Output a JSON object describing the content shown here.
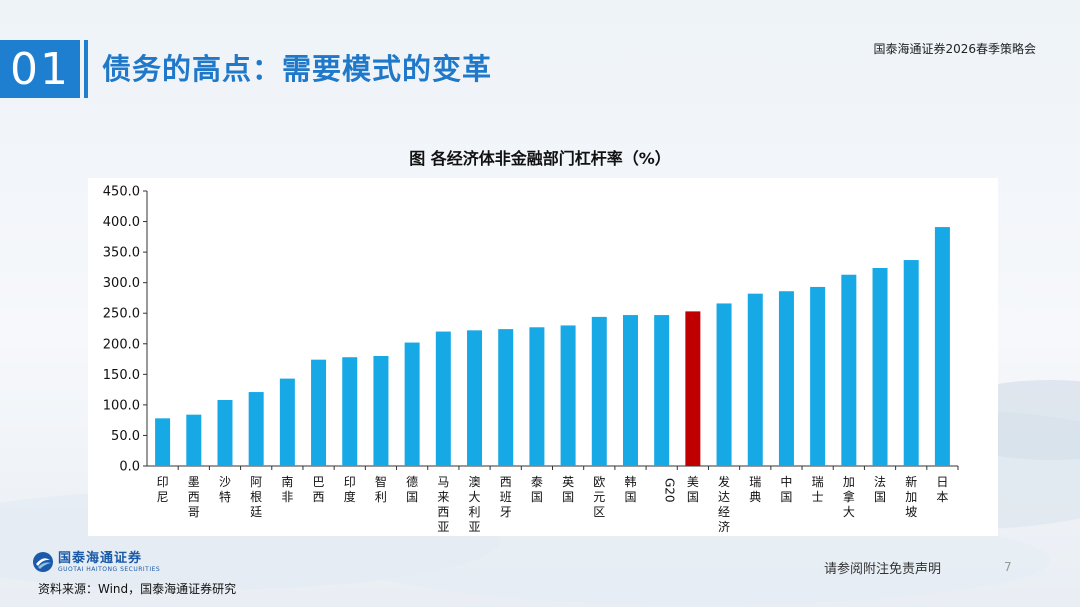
{
  "section": {
    "number": "01"
  },
  "slide": {
    "title": "债务的高点：需要模式的变革"
  },
  "event_name": "国泰海通证券2026春季策略会",
  "chart_data": {
    "type": "bar",
    "title": "图 各经济体非金融部门杠杆率（%）",
    "categories": [
      "印尼",
      "墨西哥",
      "沙特",
      "阿根廷",
      "南非",
      "巴西",
      "印度",
      "智利",
      "德国",
      "马来西亚",
      "澳大利亚",
      "西班牙",
      "泰国",
      "英国",
      "欧元区",
      "韩国",
      "G20",
      "美国",
      "发达经济",
      "瑞典",
      "中国",
      "瑞士",
      "加拿大",
      "法国",
      "新加坡",
      "日本"
    ],
    "values": [
      78,
      84,
      108,
      121,
      143,
      174,
      178,
      180,
      202,
      220,
      222,
      224,
      227,
      230,
      244,
      247,
      247,
      253,
      266,
      282,
      286,
      293,
      313,
      324,
      337,
      391
    ],
    "highlight_category": "美国",
    "bar_color": "#17a9e6",
    "highlight_color": "#c00000",
    "ylim": [
      0,
      450
    ],
    "y_ticks": [
      "0.0",
      "50.0",
      "100.0",
      "150.0",
      "200.0",
      "250.0",
      "300.0",
      "350.0",
      "400.0",
      "450.0"
    ],
    "grid": false
  },
  "footer": {
    "logo_cn": "国泰海通证券",
    "logo_en": "GUOTAI HAITONG SECURITIES",
    "disclaimer": "请参阅附注免责声明",
    "page_number": "7",
    "source": "资料来源：Wind，国泰海通证券研究"
  }
}
